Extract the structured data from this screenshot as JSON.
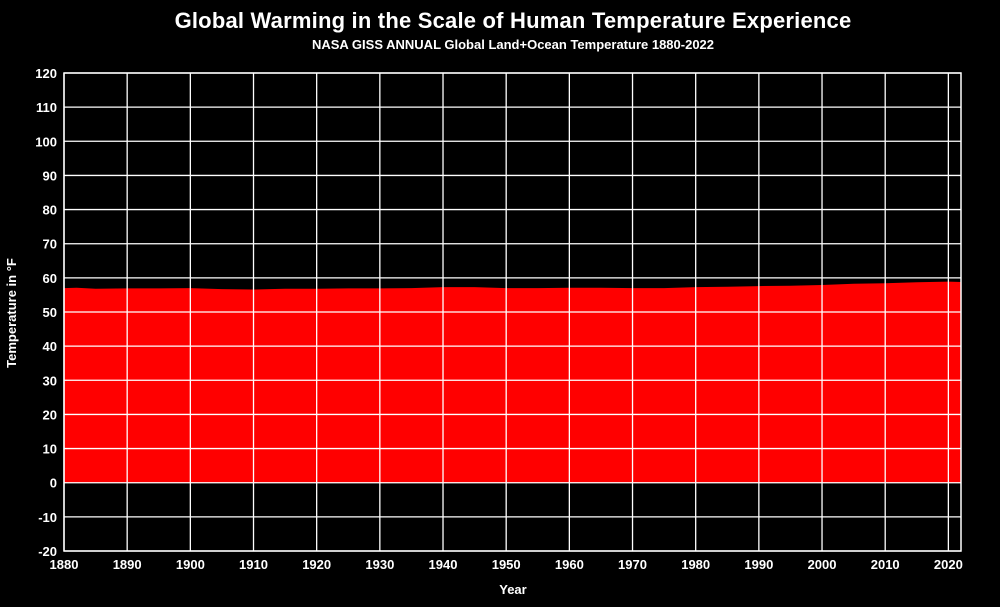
{
  "chart_data": {
    "type": "area",
    "title": "Global Warming in the Scale of Human Temperature Experience",
    "subtitle": "NASA GISS ANNUAL Global Land+Ocean Temperature 1880-2022",
    "xlabel": "Year",
    "ylabel": "Temperature in °F",
    "xlim": [
      1880,
      2022
    ],
    "ylim": [
      -20,
      120
    ],
    "x_ticks": [
      1880,
      1890,
      1900,
      1910,
      1920,
      1930,
      1940,
      1950,
      1960,
      1970,
      1980,
      1990,
      2000,
      2010,
      2020
    ],
    "y_ticks": [
      -20,
      -10,
      0,
      10,
      20,
      30,
      40,
      50,
      60,
      70,
      80,
      90,
      100,
      110,
      120
    ],
    "grid": true,
    "series": [
      {
        "color": "#ff0000",
        "x": [
          1880,
          1882,
          1885,
          1890,
          1895,
          1900,
          1905,
          1910,
          1915,
          1920,
          1925,
          1930,
          1935,
          1940,
          1945,
          1950,
          1955,
          1960,
          1965,
          1970,
          1975,
          1980,
          1985,
          1990,
          1995,
          2000,
          2005,
          2010,
          2015,
          2020,
          2022
        ],
        "y": [
          57.0,
          57.1,
          56.8,
          56.9,
          56.9,
          57.0,
          56.7,
          56.6,
          56.8,
          56.8,
          56.9,
          56.9,
          57.0,
          57.3,
          57.3,
          57.0,
          57.0,
          57.1,
          57.1,
          57.0,
          57.0,
          57.3,
          57.4,
          57.6,
          57.7,
          57.9,
          58.3,
          58.4,
          58.7,
          58.9,
          58.8
        ]
      }
    ]
  },
  "colors": {
    "background": "#000000",
    "grid": "#ffffff",
    "text": "#ffffff",
    "fill": "#ff0000"
  }
}
